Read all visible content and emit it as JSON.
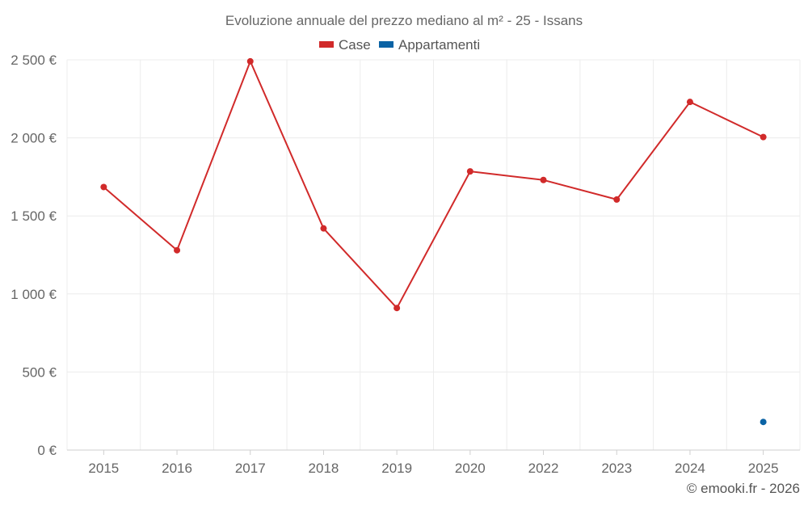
{
  "chart_data": {
    "type": "line",
    "title": "Evoluzione annuale del prezzo mediano al m² - 25 - Issans",
    "categories": [
      "2015",
      "2016",
      "2017",
      "2018",
      "2019",
      "2020",
      "2022",
      "2023",
      "2024",
      "2025"
    ],
    "series": [
      {
        "name": "Case",
        "color": "#d12a2a",
        "values": [
          1685,
          1280,
          2490,
          1420,
          910,
          1785,
          1730,
          1605,
          2230,
          2005
        ]
      },
      {
        "name": "Appartamenti",
        "color": "#0b63a5",
        "values": [
          null,
          null,
          null,
          null,
          null,
          null,
          null,
          null,
          null,
          180
        ]
      }
    ],
    "ylim": [
      0,
      2500
    ],
    "yticks": [
      0,
      500,
      1000,
      1500,
      2000,
      2500
    ],
    "ytick_labels": [
      "0 €",
      "500 €",
      "1 000 €",
      "1 500 €",
      "2 000 €",
      "2 500 €"
    ],
    "legend_position": "top-center",
    "grid": true
  },
  "credit": "© emooki.fr - 2026"
}
